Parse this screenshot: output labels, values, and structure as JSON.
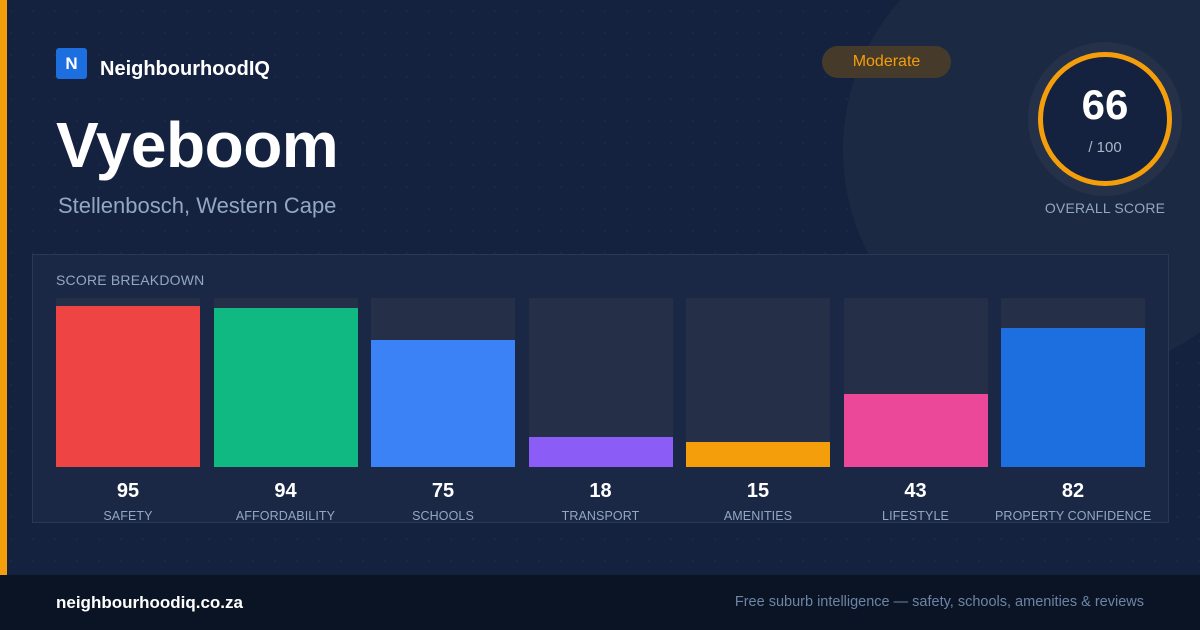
{
  "brand": {
    "logo_letter": "N",
    "name": "NeighbourhoodIQ"
  },
  "suburb": {
    "name": "Vyeboom",
    "location": "Stellenbosch, Western Cape"
  },
  "rating": {
    "badge": "Moderate"
  },
  "overall": {
    "value": "66",
    "max": "/ 100",
    "label": "OVERALL SCORE"
  },
  "breakdown": {
    "title": "SCORE BREAKDOWN",
    "max": 100,
    "items": [
      {
        "label": "SAFETY",
        "value": 95,
        "color": "#ef4444"
      },
      {
        "label": "AFFORDABILITY",
        "value": 94,
        "color": "#10b981"
      },
      {
        "label": "SCHOOLS",
        "value": 75,
        "color": "#3b82f6"
      },
      {
        "label": "TRANSPORT",
        "value": 18,
        "color": "#8b5cf6"
      },
      {
        "label": "AMENITIES",
        "value": 15,
        "color": "#f59e0b"
      },
      {
        "label": "LIFESTYLE",
        "value": 43,
        "color": "#ec4899"
      },
      {
        "label": "PROPERTY CONFIDENCE",
        "value": 82,
        "color": "#1d6fe0"
      }
    ]
  },
  "footer": {
    "url": "neighbourhoodiq.co.za",
    "tagline": "Free suburb intelligence — safety, schools, amenities & reviews"
  },
  "colors": {
    "accent": "#f59e0b",
    "brand": "#1d6fe0",
    "background": "#14223f"
  }
}
